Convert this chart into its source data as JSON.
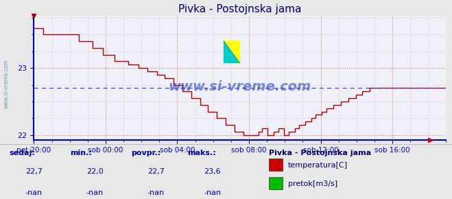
{
  "title": "Pivka - Postojnska jama",
  "bg_color": "#e8e8e8",
  "plot_bg_color": "#f0f0f8",
  "line_color": "#aa0000",
  "grid_color": "#dd6666",
  "avg_line_color": "#4444cc",
  "avg_value": 22.7,
  "ymin": 21.92,
  "ymax": 23.78,
  "yticks": [
    22,
    23
  ],
  "xlabel_color": "#0000cc",
  "title_color": "#000066",
  "stats_labels": [
    "sedaj:",
    "min.:",
    "povpr.:",
    "maks.:"
  ],
  "stats_values": [
    "22,7",
    "22,0",
    "22,7",
    "23,6"
  ],
  "stats_nan": [
    "-nan",
    "-nan",
    "-nan",
    "-nan"
  ],
  "legend_title": "Pivka - Postojnska jama",
  "legend_items": [
    "temperatura[C]",
    "pretok[m3/s]"
  ],
  "legend_colors": [
    "#cc0000",
    "#00bb00"
  ],
  "xtick_labels": [
    "pet 20:00",
    "sob 00:00",
    "sob 04:00",
    "sob 08:00",
    "sob 12:00",
    "sob 16:00"
  ],
  "xtick_positions": [
    0,
    4,
    8,
    12,
    16,
    20
  ],
  "xlim_max": 22.4,
  "watermark": "www.si-vreme.com",
  "watermark_color": "#2244cc",
  "side_watermark": "www.si-vreme.com",
  "side_watermark_color": "#6688bb"
}
